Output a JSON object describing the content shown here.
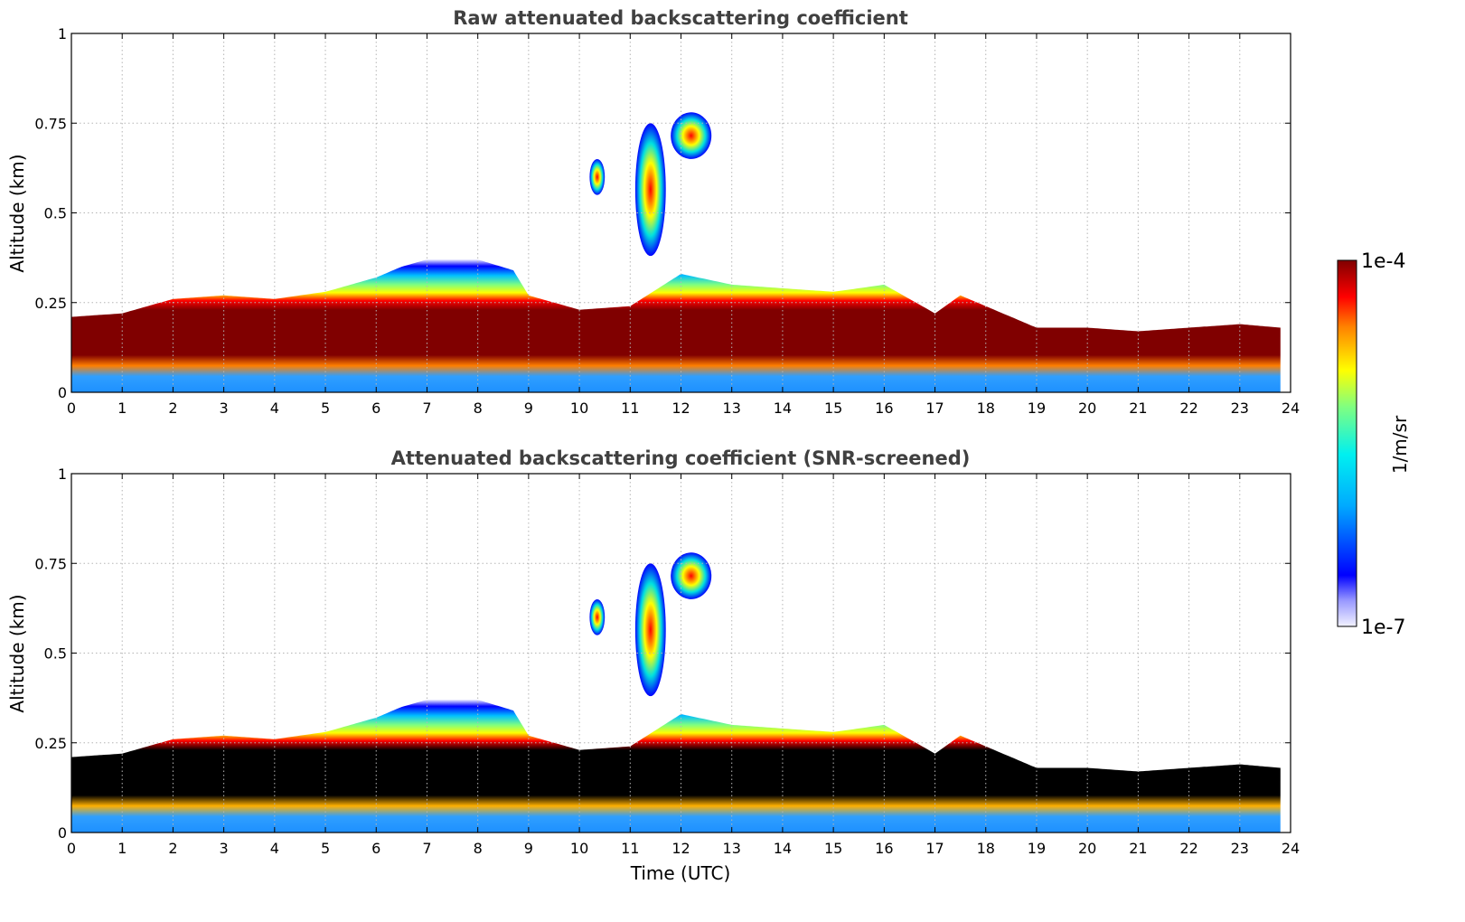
{
  "chart_data": [
    {
      "type": "heatmap",
      "title": "Raw attenuated backscattering coefficient",
      "xlabel": "",
      "ylabel": "Altitude (km)",
      "xlim": [
        0,
        24
      ],
      "ylim": [
        0,
        1
      ],
      "x_ticks": [
        "0",
        "1",
        "2",
        "3",
        "4",
        "5",
        "6",
        "7",
        "8",
        "9",
        "10",
        "11",
        "12",
        "13",
        "14",
        "15",
        "16",
        "17",
        "18",
        "19",
        "20",
        "21",
        "22",
        "23",
        "24"
      ],
      "y_ticks": [
        "0",
        "0.25",
        "0.5",
        "0.75",
        "1"
      ],
      "grid": true,
      "screened": false,
      "boundary_layer_top_km": {
        "time_utc": [
          0,
          1,
          2,
          3,
          4,
          5,
          6,
          6.5,
          7,
          8,
          8.7,
          9,
          10,
          11,
          12,
          13,
          14,
          15,
          16,
          17,
          17.5,
          18,
          19,
          20,
          21,
          22,
          23,
          23.8
        ],
        "height_km": [
          0.21,
          0.22,
          0.26,
          0.27,
          0.26,
          0.28,
          0.32,
          0.35,
          0.37,
          0.37,
          0.34,
          0.27,
          0.23,
          0.24,
          0.33,
          0.3,
          0.29,
          0.28,
          0.3,
          0.22,
          0.27,
          0.24,
          0.18,
          0.18,
          0.17,
          0.18,
          0.19,
          0.18
        ]
      },
      "elevated_features": [
        {
          "time_utc": [
            10.2,
            10.5
          ],
          "altitude_km": [
            0.55,
            0.65
          ]
        },
        {
          "time_utc": [
            11.1,
            11.7
          ],
          "altitude_km": [
            0.38,
            0.75
          ]
        },
        {
          "time_utc": [
            11.8,
            12.6
          ],
          "altitude_km": [
            0.65,
            0.78
          ]
        }
      ]
    },
    {
      "type": "heatmap",
      "title": "Attenuated backscattering coefficient (SNR-screened)",
      "xlabel": "Time (UTC)",
      "ylabel": "Altitude (km)",
      "xlim": [
        0,
        24
      ],
      "ylim": [
        0,
        1
      ],
      "x_ticks": [
        "0",
        "1",
        "2",
        "3",
        "4",
        "5",
        "6",
        "7",
        "8",
        "9",
        "10",
        "11",
        "12",
        "13",
        "14",
        "15",
        "16",
        "17",
        "18",
        "19",
        "20",
        "21",
        "22",
        "23",
        "24"
      ],
      "y_ticks": [
        "0",
        "0.25",
        "0.5",
        "0.75",
        "1"
      ],
      "grid": true,
      "screened": true
    }
  ],
  "colorbar": {
    "label": "1/m/sr",
    "max_label": "1e-4",
    "min_label": "1e-7",
    "scale": "log",
    "colormap": "jet"
  }
}
